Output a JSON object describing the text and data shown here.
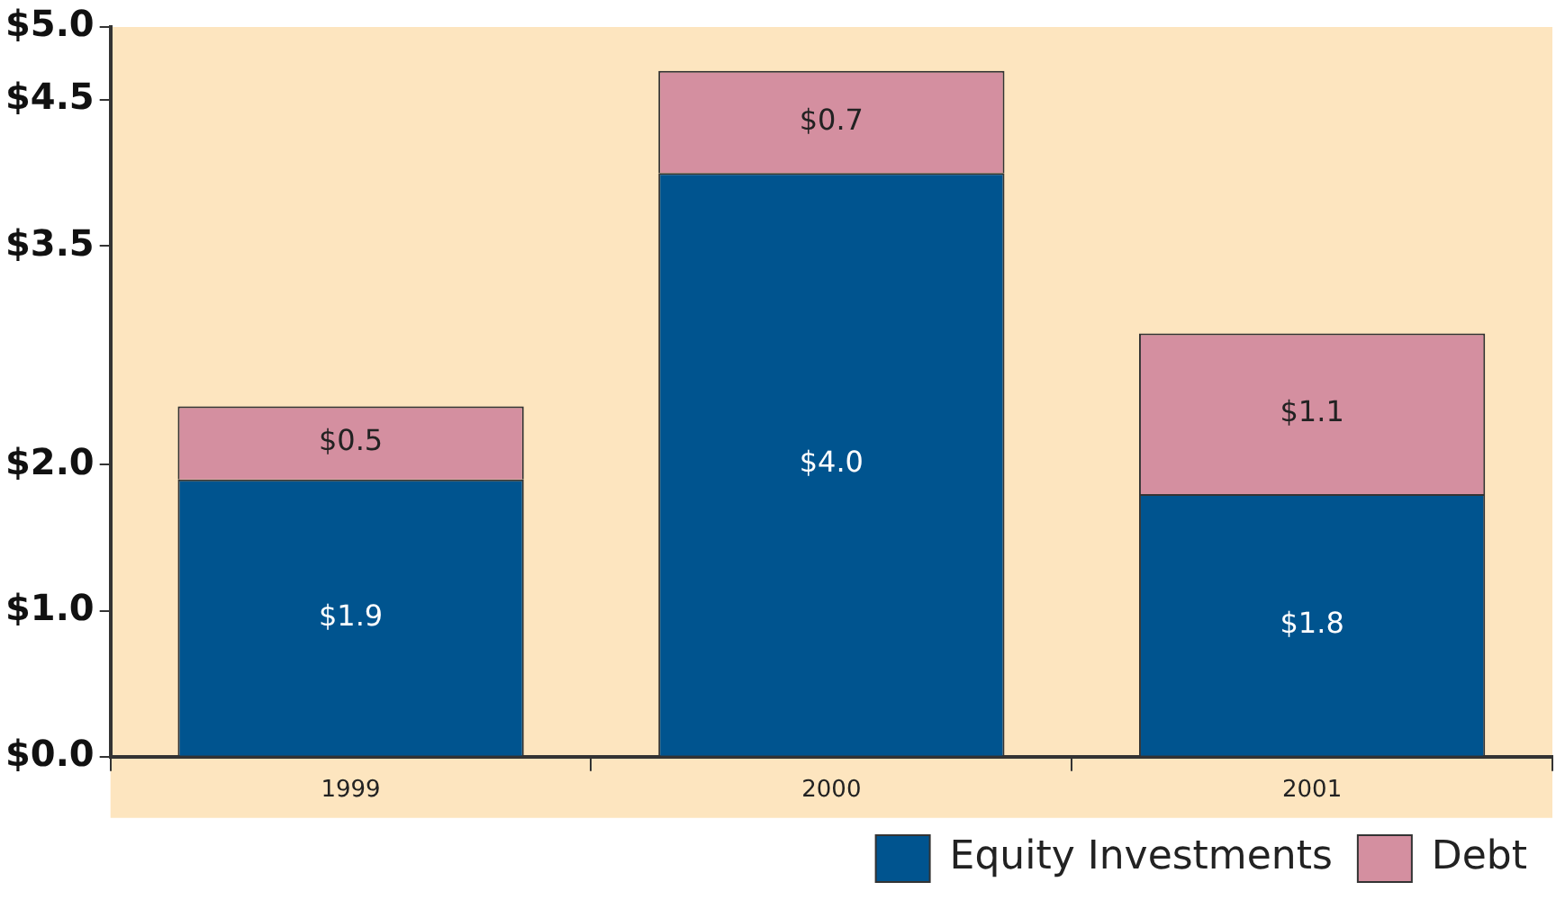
{
  "chart_data": {
    "type": "bar",
    "stacked": true,
    "categories": [
      "1999",
      "2000",
      "2001"
    ],
    "series": [
      {
        "name": "Equity Investments",
        "color": "#00548f",
        "values": [
          1.9,
          4.0,
          1.8
        ],
        "value_labels": [
          "$1.9",
          "$4.0",
          "$1.8"
        ]
      },
      {
        "name": "Debt",
        "color": "#d48fa0",
        "values": [
          0.5,
          0.7,
          1.1
        ],
        "value_labels": [
          "$0.5",
          "$0.7",
          "$1.1"
        ]
      }
    ],
    "ylim": [
      0,
      5
    ],
    "yticks": [
      {
        "value": 0,
        "label": "$0.0"
      },
      {
        "value": 1,
        "label": "$1.0"
      },
      {
        "value": 2,
        "label": "$2.0"
      },
      {
        "value": 3.5,
        "label": "$3.5"
      },
      {
        "value": 4.5,
        "label": "$4.5"
      },
      {
        "value": 5,
        "label": "$5.0"
      }
    ],
    "grid": false,
    "legend": "bottom right"
  }
}
